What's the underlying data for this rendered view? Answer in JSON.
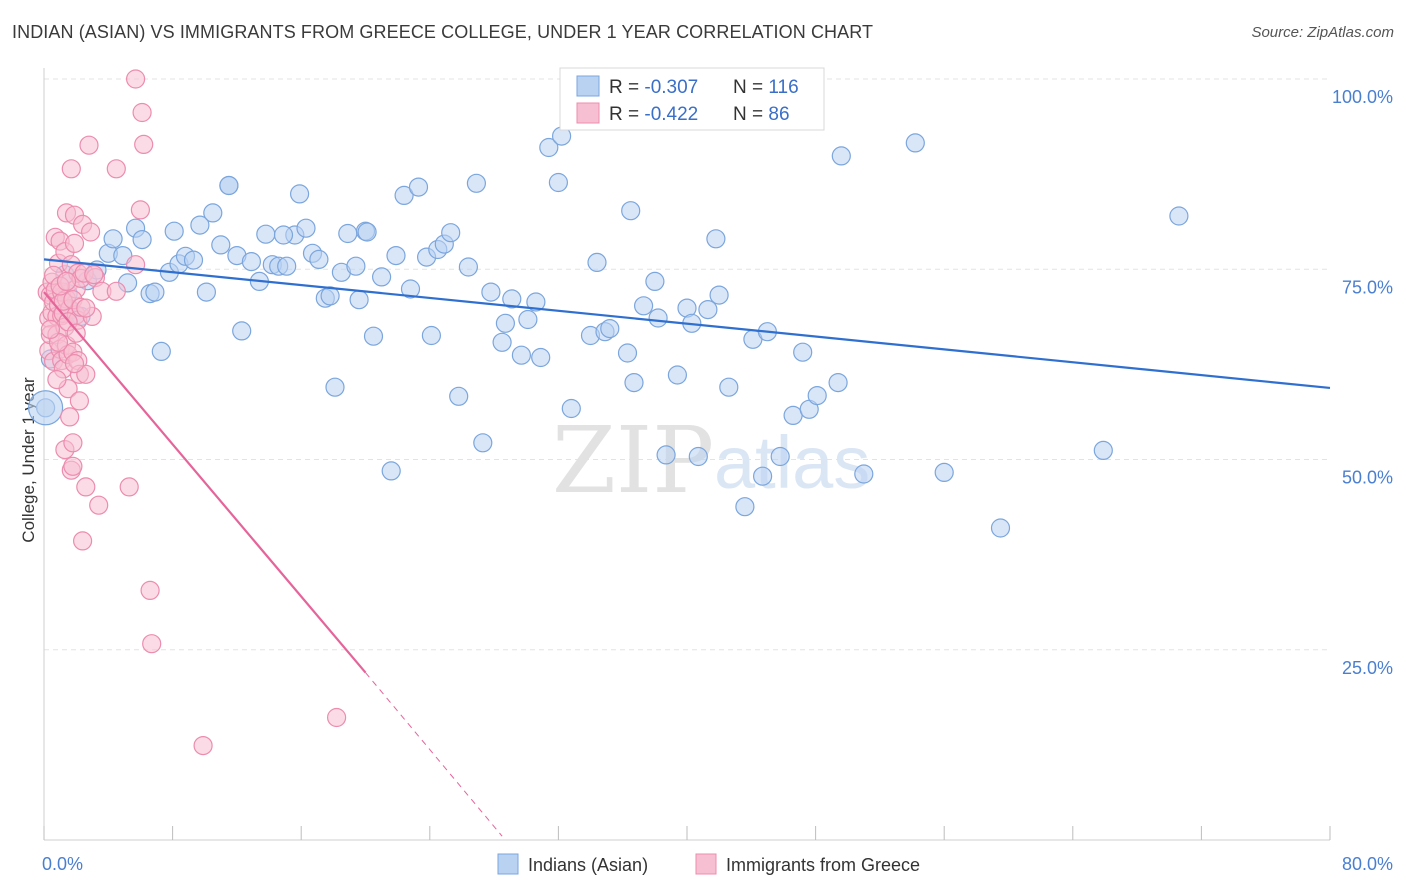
{
  "title": "INDIAN (ASIAN) VS IMMIGRANTS FROM GREECE COLLEGE, UNDER 1 YEAR CORRELATION CHART",
  "source": "Source: ZipAtlas.com",
  "watermark": {
    "zip": "ZIP",
    "atlas": "atlas"
  },
  "colors": {
    "blue_fill": "#b9d2f2",
    "blue_stroke": "#7ba6dd",
    "blue_line": "#2f6fcf",
    "pink_fill": "#f7c0d2",
    "pink_stroke": "#ec8cae",
    "pink_line": "#e5649a",
    "grid": "#e3e3e3",
    "axis_label": "#4a7fd0"
  },
  "legend": {
    "rows": [
      {
        "r_label": "R = ",
        "r_value": "-0.307",
        "n_label": "N = ",
        "n_value": "116"
      },
      {
        "r_label": "R = ",
        "r_value": "-0.422",
        "n_label": "N = ",
        "n_value": "86"
      }
    ]
  },
  "chart_data": {
    "type": "scatter",
    "title": "INDIAN (ASIAN) VS IMMIGRANTS FROM GREECE COLLEGE, UNDER 1 YEAR CORRELATION CHART",
    "xlabel": "",
    "ylabel": "College, Under 1 year",
    "xlim": [
      0,
      80
    ],
    "ylim": [
      0,
      100
    ],
    "x_tick_labels": [
      "0.0%",
      "80.0%"
    ],
    "y_tick_labels": [
      "100.0%",
      "75.0%",
      "50.0%",
      "25.0%"
    ],
    "y_ticks": [
      100,
      75,
      50,
      25
    ],
    "grid": true,
    "legend_placement": "top-center",
    "series": [
      {
        "name": "Indians (Asian)",
        "color": "#7ba6dd",
        "trend": {
          "x": [
            0,
            80
          ],
          "y": [
            76.3,
            59.4
          ]
        },
        "points": [
          [
            0.1,
            56.8
          ],
          [
            0.4,
            63.2
          ],
          [
            1.3,
            74.3
          ],
          [
            1.5,
            71.8
          ],
          [
            1.6,
            69.6
          ],
          [
            2.3,
            68.8
          ],
          [
            2.7,
            73.5
          ],
          [
            3.3,
            74.9
          ],
          [
            4.0,
            77.1
          ],
          [
            4.3,
            79.0
          ],
          [
            4.9,
            76.8
          ],
          [
            5.2,
            73.2
          ],
          [
            5.7,
            80.4
          ],
          [
            6.1,
            78.9
          ],
          [
            6.6,
            71.8
          ],
          [
            6.9,
            72.0
          ],
          [
            7.3,
            64.2
          ],
          [
            7.8,
            74.6
          ],
          [
            8.1,
            80.0
          ],
          [
            8.4,
            75.7
          ],
          [
            8.8,
            76.7
          ],
          [
            9.3,
            76.2
          ],
          [
            9.7,
            80.8
          ],
          [
            10.1,
            72.0
          ],
          [
            10.5,
            82.4
          ],
          [
            11.0,
            78.2
          ],
          [
            11.5,
            86.0
          ],
          [
            12.0,
            76.8
          ],
          [
            12.3,
            66.9
          ],
          [
            12.9,
            76.0
          ],
          [
            13.4,
            73.4
          ],
          [
            13.8,
            79.6
          ],
          [
            14.2,
            75.6
          ],
          [
            14.6,
            75.4
          ],
          [
            15.1,
            75.4
          ],
          [
            15.6,
            79.5
          ],
          [
            15.9,
            84.9
          ],
          [
            16.3,
            80.4
          ],
          [
            16.7,
            77.1
          ],
          [
            17.1,
            76.3
          ],
          [
            17.5,
            71.2
          ],
          [
            17.8,
            71.5
          ],
          [
            18.1,
            59.5
          ],
          [
            18.5,
            74.6
          ],
          [
            18.9,
            79.7
          ],
          [
            19.4,
            75.4
          ],
          [
            19.6,
            71.0
          ],
          [
            20.0,
            80.0
          ],
          [
            20.5,
            66.2
          ],
          [
            21.0,
            74.0
          ],
          [
            21.6,
            48.5
          ],
          [
            21.9,
            76.8
          ],
          [
            22.4,
            84.7
          ],
          [
            22.8,
            72.4
          ],
          [
            23.3,
            85.8
          ],
          [
            23.8,
            76.6
          ],
          [
            24.1,
            66.3
          ],
          [
            24.5,
            77.6
          ],
          [
            24.9,
            78.3
          ],
          [
            25.3,
            79.8
          ],
          [
            25.8,
            58.3
          ],
          [
            26.4,
            75.3
          ],
          [
            26.9,
            86.3
          ],
          [
            27.3,
            52.2
          ],
          [
            27.8,
            72.0
          ],
          [
            28.5,
            65.4
          ],
          [
            28.7,
            67.9
          ],
          [
            29.1,
            71.1
          ],
          [
            29.7,
            63.7
          ],
          [
            30.1,
            68.4
          ],
          [
            30.6,
            70.7
          ],
          [
            30.9,
            63.4
          ],
          [
            31.4,
            91.0
          ],
          [
            32.0,
            86.4
          ],
          [
            32.2,
            92.5
          ],
          [
            32.8,
            56.7
          ],
          [
            33.4,
            100.0
          ],
          [
            34.0,
            66.3
          ],
          [
            34.4,
            75.9
          ],
          [
            34.9,
            66.8
          ],
          [
            35.2,
            67.2
          ],
          [
            36.3,
            64.0
          ],
          [
            36.5,
            82.7
          ],
          [
            36.7,
            60.1
          ],
          [
            37.3,
            70.2
          ],
          [
            38.0,
            73.4
          ],
          [
            38.2,
            68.6
          ],
          [
            38.7,
            50.6
          ],
          [
            39.4,
            61.1
          ],
          [
            40.0,
            69.9
          ],
          [
            40.3,
            67.9
          ],
          [
            40.7,
            50.4
          ],
          [
            41.3,
            69.7
          ],
          [
            41.8,
            79.0
          ],
          [
            42.0,
            71.6
          ],
          [
            42.6,
            59.5
          ],
          [
            43.6,
            43.8
          ],
          [
            44.1,
            65.8
          ],
          [
            44.7,
            47.8
          ],
          [
            45.0,
            66.8
          ],
          [
            45.8,
            50.4
          ],
          [
            46.6,
            55.8
          ],
          [
            47.2,
            64.1
          ],
          [
            47.6,
            56.6
          ],
          [
            48.1,
            58.4
          ],
          [
            49.4,
            60.1
          ],
          [
            49.6,
            89.9
          ],
          [
            51.0,
            48.1
          ],
          [
            54.2,
            91.6
          ],
          [
            56.0,
            48.3
          ],
          [
            59.5,
            41.0
          ],
          [
            65.9,
            51.2
          ],
          [
            70.6,
            82.0
          ],
          [
            14.9,
            79.5
          ],
          [
            20.1,
            79.9
          ],
          [
            11.5,
            86.0
          ]
        ]
      },
      {
        "name": "Immigrants from Greece",
        "color": "#ec8cae",
        "trend": {
          "x": [
            0,
            20
          ],
          "y": [
            72.0,
            22.0
          ],
          "extended_x": [
            20,
            28.5
          ],
          "extended_y": [
            22.0,
            0.5
          ]
        },
        "points": [
          [
            0.2,
            72.0
          ],
          [
            0.3,
            68.6
          ],
          [
            0.3,
            64.3
          ],
          [
            0.4,
            71.6
          ],
          [
            0.4,
            66.4
          ],
          [
            0.5,
            73.3
          ],
          [
            0.5,
            69.3
          ],
          [
            0.6,
            70.7
          ],
          [
            0.6,
            62.9
          ],
          [
            0.7,
            79.2
          ],
          [
            0.7,
            72.3
          ],
          [
            0.8,
            68.8
          ],
          [
            0.8,
            66.4
          ],
          [
            0.9,
            75.8
          ],
          [
            0.9,
            70.3
          ],
          [
            1.0,
            64.5
          ],
          [
            1.0,
            78.7
          ],
          [
            1.1,
            72.0
          ],
          [
            1.1,
            68.9
          ],
          [
            1.1,
            63.0
          ],
          [
            1.2,
            61.9
          ],
          [
            1.2,
            69.2
          ],
          [
            1.3,
            77.3
          ],
          [
            1.3,
            67.4
          ],
          [
            1.3,
            51.3
          ],
          [
            1.4,
            82.4
          ],
          [
            1.4,
            71.1
          ],
          [
            1.4,
            65.0
          ],
          [
            1.5,
            63.8
          ],
          [
            1.5,
            59.3
          ],
          [
            1.6,
            73.3
          ],
          [
            1.6,
            69.8
          ],
          [
            1.6,
            55.6
          ],
          [
            1.7,
            88.2
          ],
          [
            1.7,
            75.6
          ],
          [
            1.7,
            48.6
          ],
          [
            1.8,
            64.1
          ],
          [
            1.8,
            52.2
          ],
          [
            1.8,
            49.1
          ],
          [
            1.9,
            82.1
          ],
          [
            1.9,
            78.4
          ],
          [
            2.0,
            72.4
          ],
          [
            2.0,
            69.0
          ],
          [
            2.1,
            74.5
          ],
          [
            2.1,
            68.3
          ],
          [
            2.1,
            63.0
          ],
          [
            2.2,
            57.7
          ],
          [
            2.2,
            61.2
          ],
          [
            2.3,
            73.8
          ],
          [
            2.4,
            80.9
          ],
          [
            2.4,
            39.3
          ],
          [
            2.5,
            74.5
          ],
          [
            2.6,
            46.4
          ],
          [
            2.6,
            61.2
          ],
          [
            2.8,
            91.3
          ],
          [
            2.9,
            79.9
          ],
          [
            3.0,
            68.8
          ],
          [
            3.2,
            73.9
          ],
          [
            3.4,
            44.0
          ],
          [
            3.6,
            72.1
          ],
          [
            4.5,
            88.2
          ],
          [
            4.5,
            72.1
          ],
          [
            5.3,
            46.4
          ],
          [
            5.7,
            100.0
          ],
          [
            5.7,
            75.6
          ],
          [
            6.0,
            82.8
          ],
          [
            6.1,
            95.6
          ],
          [
            6.2,
            91.4
          ],
          [
            6.6,
            32.8
          ],
          [
            6.7,
            25.8
          ],
          [
            9.9,
            12.4
          ],
          [
            18.2,
            16.1
          ],
          [
            0.9,
            65.4
          ],
          [
            1.2,
            70.8
          ],
          [
            1.5,
            68.1
          ],
          [
            2.0,
            66.6
          ],
          [
            0.6,
            74.2
          ],
          [
            1.0,
            72.8
          ],
          [
            0.4,
            67.1
          ],
          [
            1.8,
            71.0
          ],
          [
            2.3,
            70.0
          ],
          [
            1.4,
            73.4
          ],
          [
            0.8,
            60.5
          ],
          [
            1.9,
            62.6
          ],
          [
            2.6,
            69.9
          ],
          [
            3.1,
            74.3
          ]
        ]
      }
    ]
  }
}
